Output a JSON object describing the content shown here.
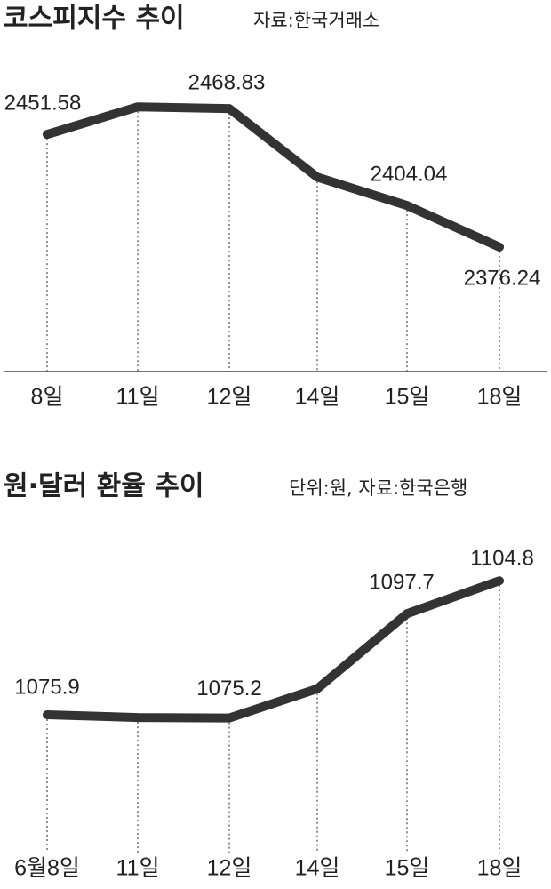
{
  "chart_data": [
    {
      "type": "line",
      "title": "코스피지수 추이",
      "note": "자료:한국거래소",
      "categories": [
        "8일",
        "11일",
        "12일",
        "14일",
        "15일",
        "18일"
      ],
      "values": [
        2451.58,
        2470,
        2468.83,
        2423,
        2404.04,
        2376.24
      ],
      "value_labels": [
        "2451.58",
        null,
        "2468.83",
        null,
        "2404.04",
        "2376.24"
      ],
      "ylim": [
        2293,
        2482
      ],
      "color": "#333333"
    },
    {
      "type": "line",
      "title": "원·달러 환율 추이",
      "note": "단위:원, 자료:한국은행",
      "categories": [
        "6월8일",
        "11일",
        "12일",
        "14일",
        "15일",
        "18일"
      ],
      "values": [
        1075.9,
        1075.3,
        1075.2,
        1081.5,
        1097.7,
        1104.8
      ],
      "value_labels": [
        "1075.9",
        null,
        "1075.2",
        null,
        "1097.7",
        "1104.8"
      ],
      "ylim": [
        1046,
        1115
      ],
      "color": "#333333"
    }
  ]
}
